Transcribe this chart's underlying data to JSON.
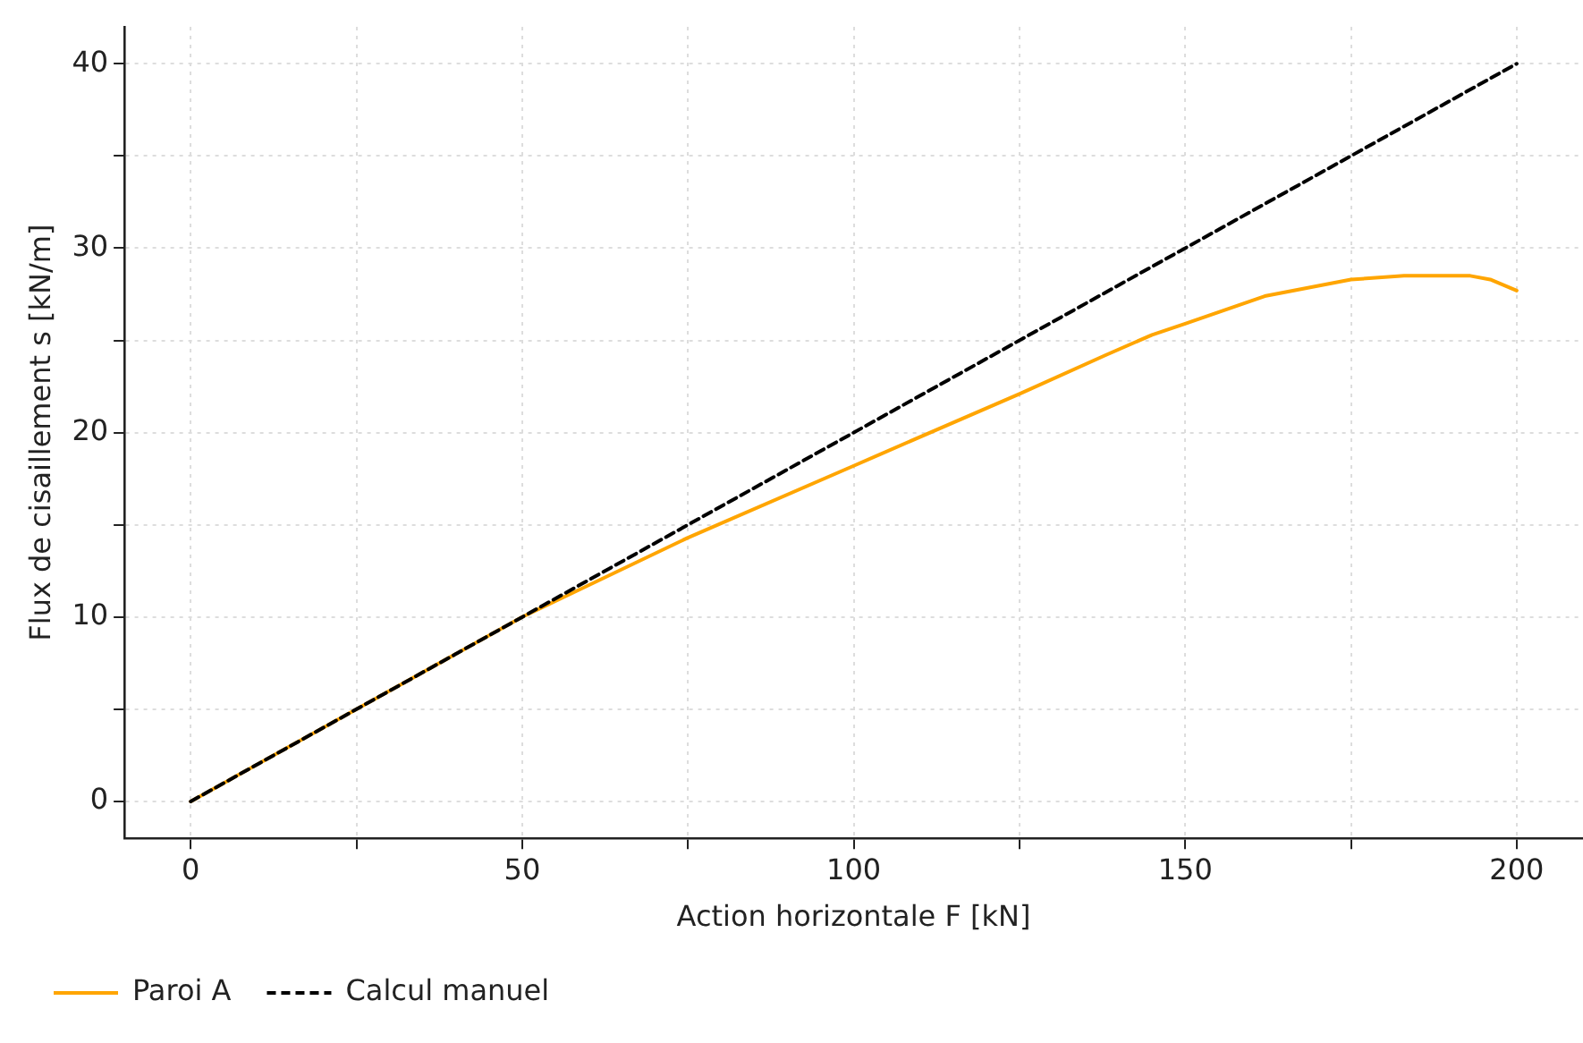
{
  "chart_data": {
    "type": "line",
    "xlabel": "Action horizontale F [kN]",
    "ylabel": "Flux de cisaillement s [kN/m]",
    "xlim": [
      -10,
      210
    ],
    "ylim": [
      -2,
      42
    ],
    "xticks": [
      0,
      {
        "value": 25,
        "label": null
      },
      50,
      {
        "value": 75,
        "label": null
      },
      100,
      {
        "value": 125,
        "label": null
      },
      150,
      {
        "value": 175,
        "label": null
      },
      200
    ],
    "yticks": [
      0,
      {
        "value": 5,
        "label": null
      },
      10,
      {
        "value": 15,
        "label": null
      },
      20,
      {
        "value": 25,
        "label": null
      },
      30,
      {
        "value": 35,
        "label": null
      },
      40
    ],
    "grid": true,
    "legend": "bottom left",
    "series": [
      {
        "name": "Paroi A",
        "color": "#ffa500",
        "line_style": "solid",
        "x": [
          0,
          50,
          75,
          100,
          125,
          138,
          145,
          150,
          162,
          175,
          183,
          193,
          196,
          200
        ],
        "values": [
          0,
          10,
          14.3,
          18.2,
          22.1,
          24.2,
          25.3,
          25.9,
          27.4,
          28.3,
          28.5,
          28.5,
          28.3,
          27.7
        ]
      },
      {
        "name": "Calcul manuel",
        "color": "#000000",
        "line_style": "dashed",
        "x": [
          0,
          200
        ],
        "values": [
          0,
          40
        ]
      }
    ]
  }
}
